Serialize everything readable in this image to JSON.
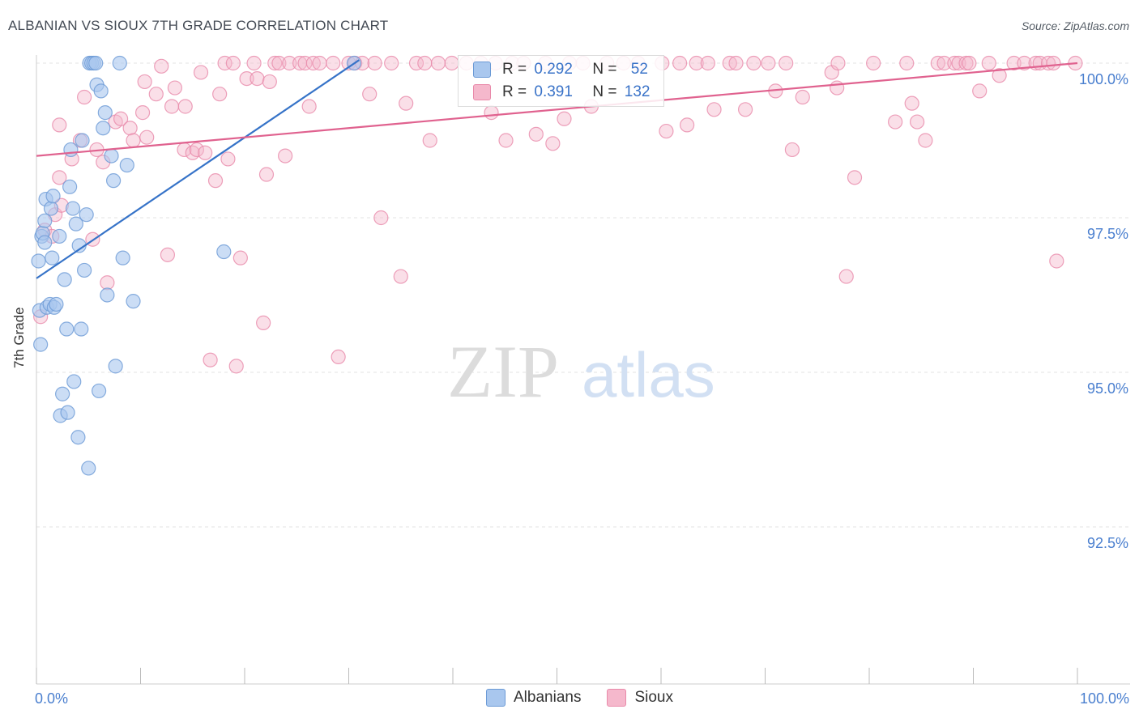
{
  "header": {
    "title": "ALBANIAN VS SIOUX 7TH GRADE CORRELATION CHART",
    "source": "Source: ZipAtlas.com"
  },
  "watermark": {
    "zip": "ZIP",
    "atlas": "atlas"
  },
  "legend": {
    "rows": [
      {
        "r_label": "R = ",
        "r_value": "0.292",
        "n_label": "N = ",
        "n_value": "52"
      },
      {
        "r_label": "R = ",
        "r_value": "0.391",
        "n_label": "N = ",
        "n_value": "132"
      }
    ]
  },
  "bottom_legend": {
    "albanians": "Albanians",
    "sioux": "Sioux"
  },
  "colors": {
    "blue_fill": "#a9c7ee",
    "blue_stroke": "#6b9ad6",
    "blue_line": "#3673c8",
    "pink_fill": "#f5b8cc",
    "pink_stroke": "#e98aaa",
    "pink_line": "#e0628f",
    "tick_label": "#4a7fcf",
    "grid": "#e3e3e3"
  },
  "chart_data": {
    "type": "scatter",
    "title": "ALBANIAN VS SIOUX 7TH GRADE CORRELATION CHART",
    "xlabel": "",
    "ylabel": "7th Grade",
    "xlim": [
      0,
      100
    ],
    "ylim": [
      90.0,
      100.3
    ],
    "x_tick_labels": {
      "left": "0.0%",
      "right": "100.0%"
    },
    "y_ticks": [
      {
        "value": 100.0,
        "label": "100.0%"
      },
      {
        "value": 97.5,
        "label": "97.5%"
      },
      {
        "value": 95.0,
        "label": "95.0%"
      },
      {
        "value": 92.5,
        "label": "92.5%"
      }
    ],
    "series": [
      {
        "name": "Albanians",
        "R": 0.292,
        "N": 52,
        "trend": {
          "x": [
            0,
            31
          ],
          "y": [
            96.52,
            100.05
          ]
        },
        "points": [
          [
            0.2,
            96.8
          ],
          [
            0.3,
            96.0
          ],
          [
            0.4,
            95.45
          ],
          [
            0.5,
            97.2
          ],
          [
            0.6,
            97.25
          ],
          [
            0.8,
            97.1
          ],
          [
            0.9,
            97.8
          ],
          [
            1.0,
            96.05
          ],
          [
            1.3,
            96.1
          ],
          [
            1.4,
            97.65
          ],
          [
            1.6,
            97.85
          ],
          [
            1.7,
            96.05
          ],
          [
            1.9,
            96.1
          ],
          [
            2.2,
            97.2
          ],
          [
            2.3,
            94.3
          ],
          [
            2.5,
            94.65
          ],
          [
            2.7,
            96.5
          ],
          [
            2.9,
            95.7
          ],
          [
            3.0,
            94.35
          ],
          [
            3.2,
            98.0
          ],
          [
            3.3,
            98.6
          ],
          [
            3.5,
            97.65
          ],
          [
            3.6,
            94.85
          ],
          [
            3.8,
            97.4
          ],
          [
            4.0,
            93.95
          ],
          [
            4.1,
            97.05
          ],
          [
            4.3,
            95.7
          ],
          [
            4.4,
            98.75
          ],
          [
            4.6,
            96.65
          ],
          [
            4.8,
            97.55
          ],
          [
            5.0,
            93.45
          ],
          [
            5.1,
            100.0
          ],
          [
            5.3,
            100.0
          ],
          [
            5.5,
            100.0
          ],
          [
            5.7,
            100.0
          ],
          [
            5.8,
            99.65
          ],
          [
            6.0,
            94.7
          ],
          [
            6.2,
            99.55
          ],
          [
            6.4,
            98.95
          ],
          [
            6.6,
            99.2
          ],
          [
            6.8,
            96.25
          ],
          [
            7.2,
            98.5
          ],
          [
            7.4,
            98.1
          ],
          [
            7.6,
            95.1
          ],
          [
            8.0,
            100.0
          ],
          [
            8.3,
            96.85
          ],
          [
            8.7,
            98.35
          ],
          [
            9.3,
            96.15
          ],
          [
            18.0,
            96.95
          ],
          [
            30.5,
            100.0
          ],
          [
            0.8,
            97.45
          ],
          [
            1.5,
            96.85
          ]
        ]
      },
      {
        "name": "Sioux",
        "R": 0.391,
        "N": 132,
        "trend": {
          "x": [
            0,
            100
          ],
          "y": [
            98.5,
            100.0
          ]
        },
        "points": [
          [
            0.4,
            95.9
          ],
          [
            0.8,
            97.3
          ],
          [
            1.5,
            97.2
          ],
          [
            1.8,
            97.55
          ],
          [
            2.2,
            98.15
          ],
          [
            2.4,
            97.7
          ],
          [
            3.4,
            98.45
          ],
          [
            4.2,
            98.75
          ],
          [
            4.6,
            99.45
          ],
          [
            5.4,
            97.15
          ],
          [
            5.8,
            98.6
          ],
          [
            6.4,
            98.4
          ],
          [
            6.8,
            96.45
          ],
          [
            7.6,
            99.05
          ],
          [
            8.1,
            99.1
          ],
          [
            9.0,
            98.95
          ],
          [
            9.3,
            98.75
          ],
          [
            10.2,
            99.2
          ],
          [
            10.6,
            98.8
          ],
          [
            10.4,
            99.7
          ],
          [
            11.5,
            99.5
          ],
          [
            12.0,
            99.95
          ],
          [
            12.6,
            96.9
          ],
          [
            13.0,
            99.3
          ],
          [
            13.3,
            99.6
          ],
          [
            14.2,
            98.6
          ],
          [
            14.3,
            99.3
          ],
          [
            15.0,
            98.55
          ],
          [
            15.4,
            98.6
          ],
          [
            15.8,
            99.85
          ],
          [
            16.2,
            98.55
          ],
          [
            16.7,
            95.2
          ],
          [
            17.2,
            98.1
          ],
          [
            17.6,
            99.5
          ],
          [
            18.1,
            100.0
          ],
          [
            18.4,
            98.45
          ],
          [
            18.9,
            100.0
          ],
          [
            19.2,
            95.1
          ],
          [
            19.6,
            96.85
          ],
          [
            20.2,
            99.75
          ],
          [
            20.9,
            100.0
          ],
          [
            21.2,
            99.75
          ],
          [
            21.8,
            95.8
          ],
          [
            22.1,
            98.2
          ],
          [
            22.4,
            99.7
          ],
          [
            22.9,
            100.0
          ],
          [
            23.3,
            100.0
          ],
          [
            23.9,
            98.5
          ],
          [
            24.3,
            100.0
          ],
          [
            25.3,
            100.0
          ],
          [
            25.8,
            100.0
          ],
          [
            26.2,
            99.3
          ],
          [
            26.6,
            100.0
          ],
          [
            27.2,
            100.0
          ],
          [
            28.5,
            100.0
          ],
          [
            29.0,
            95.25
          ],
          [
            30.0,
            100.0
          ],
          [
            30.6,
            100.0
          ],
          [
            31.3,
            100.0
          ],
          [
            32.0,
            99.5
          ],
          [
            32.5,
            100.0
          ],
          [
            33.1,
            97.5
          ],
          [
            34.1,
            100.0
          ],
          [
            35.0,
            96.55
          ],
          [
            35.5,
            99.35
          ],
          [
            36.5,
            100.0
          ],
          [
            37.3,
            100.0
          ],
          [
            37.8,
            98.75
          ],
          [
            38.6,
            100.0
          ],
          [
            39.9,
            100.0
          ],
          [
            41.3,
            100.0
          ],
          [
            42.7,
            100.0
          ],
          [
            43.7,
            99.2
          ],
          [
            44.1,
            100.0
          ],
          [
            45.1,
            98.75
          ],
          [
            45.7,
            100.0
          ],
          [
            46.8,
            100.0
          ],
          [
            48.0,
            98.85
          ],
          [
            48.9,
            100.0
          ],
          [
            49.6,
            98.7
          ],
          [
            50.7,
            99.1
          ],
          [
            51.2,
            100.0
          ],
          [
            52.5,
            100.0
          ],
          [
            53.3,
            99.3
          ],
          [
            54.8,
            100.0
          ],
          [
            56.4,
            100.0
          ],
          [
            57.8,
            100.0
          ],
          [
            60.1,
            100.0
          ],
          [
            60.5,
            98.9
          ],
          [
            61.8,
            100.0
          ],
          [
            62.5,
            99.0
          ],
          [
            63.4,
            100.0
          ],
          [
            64.5,
            100.0
          ],
          [
            65.1,
            99.25
          ],
          [
            66.6,
            100.0
          ],
          [
            67.2,
            100.0
          ],
          [
            68.1,
            99.25
          ],
          [
            68.9,
            100.0
          ],
          [
            70.3,
            100.0
          ],
          [
            71.0,
            99.55
          ],
          [
            72.0,
            100.0
          ],
          [
            72.6,
            98.6
          ],
          [
            73.6,
            99.45
          ],
          [
            76.4,
            99.85
          ],
          [
            76.9,
            99.6
          ],
          [
            77.0,
            100.0
          ],
          [
            77.8,
            96.55
          ],
          [
            78.6,
            98.15
          ],
          [
            80.4,
            100.0
          ],
          [
            82.5,
            99.05
          ],
          [
            83.6,
            100.0
          ],
          [
            84.1,
            99.35
          ],
          [
            84.6,
            99.05
          ],
          [
            85.4,
            98.75
          ],
          [
            86.6,
            100.0
          ],
          [
            87.2,
            100.0
          ],
          [
            88.2,
            100.0
          ],
          [
            88.6,
            100.0
          ],
          [
            89.3,
            100.0
          ],
          [
            89.6,
            100.0
          ],
          [
            90.6,
            99.55
          ],
          [
            91.5,
            100.0
          ],
          [
            92.5,
            99.8
          ],
          [
            93.9,
            100.0
          ],
          [
            94.9,
            100.0
          ],
          [
            96.0,
            100.0
          ],
          [
            96.4,
            100.0
          ],
          [
            97.2,
            100.0
          ],
          [
            97.7,
            100.0
          ],
          [
            98.0,
            96.8
          ],
          [
            99.8,
            100.0
          ],
          [
            2.2,
            99.0
          ]
        ]
      }
    ]
  }
}
